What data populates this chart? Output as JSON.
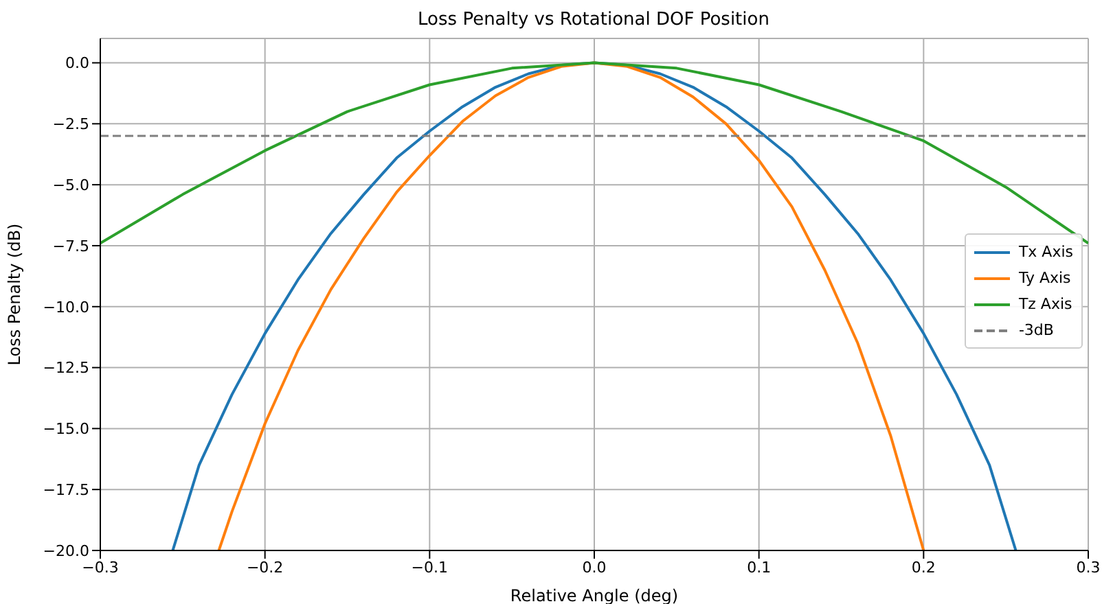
{
  "chart_data": {
    "type": "line",
    "title": "Loss Penalty vs Rotational DOF Position",
    "xlabel": "Relative Angle (deg)",
    "ylabel": "Loss Penalty (dB)",
    "series": [
      {
        "name": "Tx Axis",
        "color": "#1f77b4",
        "x": [
          -0.256,
          -0.24,
          -0.22,
          -0.2,
          -0.18,
          -0.16,
          -0.14,
          -0.12,
          -0.1,
          -0.08,
          -0.06,
          -0.04,
          -0.02,
          0,
          0.02,
          0.04,
          0.06,
          0.08,
          0.1,
          0.12,
          0.14,
          0.16,
          0.18,
          0.2,
          0.22,
          0.24,
          0.256
        ],
        "values": [
          -20,
          -16.5,
          -13.6,
          -11.1,
          -8.9,
          -7.0,
          -5.4,
          -3.9,
          -2.8,
          -1.8,
          -1.0,
          -0.45,
          -0.1,
          0,
          -0.1,
          -0.45,
          -1.0,
          -1.8,
          -2.8,
          -3.9,
          -5.4,
          -7.0,
          -8.9,
          -11.1,
          -13.6,
          -16.5,
          -20
        ]
      },
      {
        "name": "Ty Axis",
        "color": "#ff7f0e",
        "x": [
          -0.228,
          -0.22,
          -0.2,
          -0.18,
          -0.16,
          -0.14,
          -0.12,
          -0.1,
          -0.08,
          -0.06,
          -0.04,
          -0.02,
          0,
          0.02,
          0.04,
          0.06,
          0.08,
          0.1,
          0.12,
          0.14,
          0.16,
          0.18,
          0.2
        ],
        "values": [
          -20,
          -18.4,
          -14.8,
          -11.8,
          -9.3,
          -7.2,
          -5.3,
          -3.8,
          -2.4,
          -1.35,
          -0.6,
          -0.15,
          0,
          -0.15,
          -0.6,
          -1.4,
          -2.5,
          -4.0,
          -5.9,
          -8.5,
          -11.5,
          -15.3,
          -20
        ]
      },
      {
        "name": "Tz Axis",
        "color": "#2ca02c",
        "x": [
          -0.3,
          -0.25,
          -0.2,
          -0.15,
          -0.1,
          -0.05,
          0,
          0.05,
          0.1,
          0.15,
          0.2,
          0.25,
          0.3
        ],
        "values": [
          -7.4,
          -5.4,
          -3.6,
          -2.0,
          -0.9,
          -0.22,
          0,
          -0.22,
          -0.9,
          -2.0,
          -3.2,
          -5.1,
          -7.4
        ]
      }
    ],
    "ref_lines": [
      {
        "axis": "y",
        "value": -3,
        "label": "-3dB",
        "color": "#808080",
        "line_style": "dashed"
      }
    ],
    "xlim": [
      -0.3,
      0.3
    ],
    "xticks": [
      {
        "value": -0.3,
        "label": "−0.3"
      },
      {
        "value": -0.2,
        "label": "−0.2"
      },
      {
        "value": -0.1,
        "label": "−0.1"
      },
      {
        "value": 0,
        "label": "0.0"
      },
      {
        "value": 0.1,
        "label": "0.1"
      },
      {
        "value": 0.2,
        "label": "0.2"
      },
      {
        "value": 0.3,
        "label": "0.3"
      }
    ],
    "ylim": [
      -20,
      1
    ],
    "yticks": [
      {
        "value": -20,
        "label": "−20.0"
      },
      {
        "value": -17.5,
        "label": "−17.5"
      },
      {
        "value": -15,
        "label": "−15.0"
      },
      {
        "value": -12.5,
        "label": "−12.5"
      },
      {
        "value": -10,
        "label": "−10.0"
      },
      {
        "value": -7.5,
        "label": "−7.5"
      },
      {
        "value": -5,
        "label": "−5.0"
      },
      {
        "value": -2.5,
        "label": "−2.5"
      },
      {
        "value": 0,
        "label": "0.0"
      }
    ],
    "grid": true,
    "legend": "right",
    "marker": "none",
    "line_style": "solid"
  }
}
